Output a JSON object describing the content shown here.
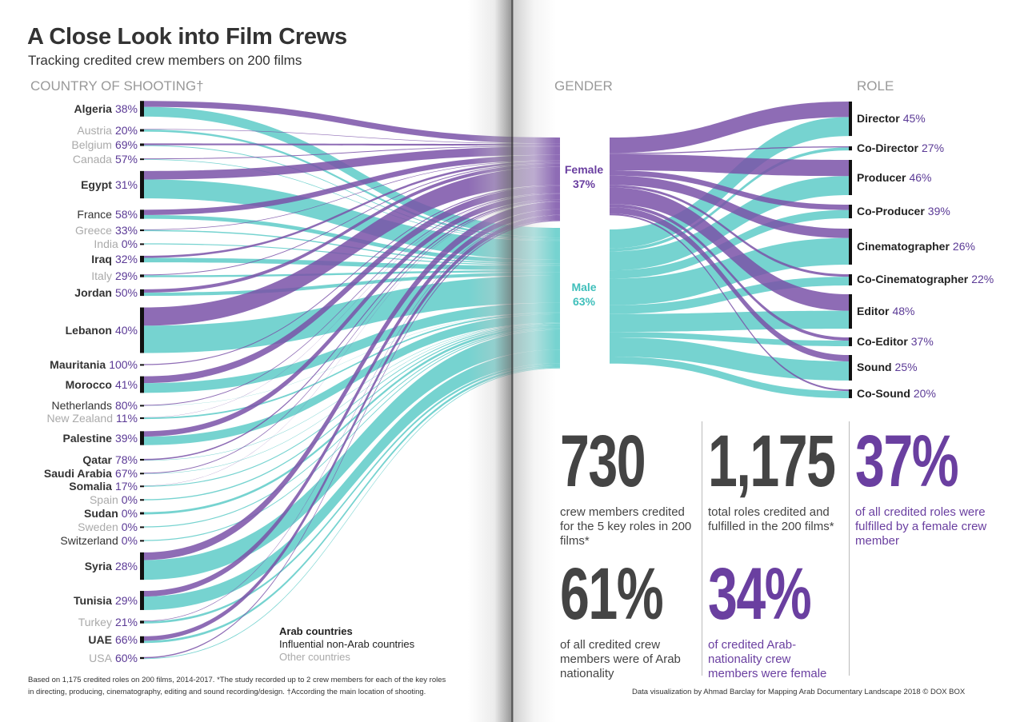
{
  "header": {
    "title": "A Close Look into Film Crews",
    "subtitle": "Tracking credited crew members on 200 films"
  },
  "columns": {
    "country": "COUNTRY OF SHOOTING†",
    "gender": "GENDER",
    "role": "ROLE"
  },
  "colors": {
    "female": "#7a52a8",
    "male": "#5ecbc8",
    "pct_text": "#5b3a96"
  },
  "chart_data": {
    "type": "sankey",
    "stages": [
      "Country of shooting",
      "Gender",
      "Role"
    ],
    "gender": [
      {
        "name": "Female",
        "pct": "37%"
      },
      {
        "name": "Male",
        "pct": "63%"
      }
    ],
    "countries": [
      {
        "name": "Algeria",
        "pct": "38%",
        "female_pct": 38,
        "group": "arab",
        "roles_est": 81
      },
      {
        "name": "Austria",
        "pct": "20%",
        "female_pct": 20,
        "group": "other",
        "roles_est": 13
      },
      {
        "name": "Belgium",
        "pct": "69%",
        "female_pct": 69,
        "group": "other",
        "roles_est": 13
      },
      {
        "name": "Canada",
        "pct": "57%",
        "female_pct": 57,
        "group": "other",
        "roles_est": 7
      },
      {
        "name": "Egypt",
        "pct": "31%",
        "female_pct": 31,
        "group": "arab",
        "roles_est": 142
      },
      {
        "name": "France",
        "pct": "58%",
        "female_pct": 58,
        "group": "influential",
        "roles_est": 47
      },
      {
        "name": "Greece",
        "pct": "33%",
        "female_pct": 33,
        "group": "other",
        "roles_est": 9
      },
      {
        "name": "India",
        "pct": "0%",
        "female_pct": 0,
        "group": "other",
        "roles_est": 3
      },
      {
        "name": "Iraq",
        "pct": "32%",
        "female_pct": 32,
        "group": "arab",
        "roles_est": 34
      },
      {
        "name": "Italy",
        "pct": "29%",
        "female_pct": 29,
        "group": "other",
        "roles_est": 14
      },
      {
        "name": "Jordan",
        "pct": "50%",
        "female_pct": 50,
        "group": "arab",
        "roles_est": 34
      },
      {
        "name": "Lebanon",
        "pct": "40%",
        "female_pct": 40,
        "group": "arab",
        "roles_est": 236
      },
      {
        "name": "Mauritania",
        "pct": "100%",
        "female_pct": 100,
        "group": "arab",
        "roles_est": 2
      },
      {
        "name": "Morocco",
        "pct": "41%",
        "female_pct": 41,
        "group": "arab",
        "roles_est": 86
      },
      {
        "name": "Netherlands",
        "pct": "80%",
        "female_pct": 80,
        "group": "influential",
        "roles_est": 5
      },
      {
        "name": "New Zealand",
        "pct": "11%",
        "female_pct": 11,
        "group": "other",
        "roles_est": 9
      },
      {
        "name": "Palestine",
        "pct": "39%",
        "female_pct": 39,
        "group": "arab",
        "roles_est": 72
      },
      {
        "name": "Qatar",
        "pct": "78%",
        "female_pct": 78,
        "group": "arab",
        "roles_est": 9
      },
      {
        "name": "Saudi Arabia",
        "pct": "67%",
        "female_pct": 67,
        "group": "arab",
        "roles_est": 6
      },
      {
        "name": "Somalia",
        "pct": "17%",
        "female_pct": 17,
        "group": "arab",
        "roles_est": 6
      },
      {
        "name": "Spain",
        "pct": "0%",
        "female_pct": 0,
        "group": "other",
        "roles_est": 6
      },
      {
        "name": "Sudan",
        "pct": "0%",
        "female_pct": 0,
        "group": "arab",
        "roles_est": 12
      },
      {
        "name": "Sweden",
        "pct": "0%",
        "female_pct": 0,
        "group": "other",
        "roles_est": 3
      },
      {
        "name": "Switzerland",
        "pct": "0%",
        "female_pct": 0,
        "group": "influential",
        "roles_est": 3
      },
      {
        "name": "Syria",
        "pct": "28%",
        "female_pct": 28,
        "group": "arab",
        "roles_est": 142
      },
      {
        "name": "Tunisia",
        "pct": "29%",
        "female_pct": 29,
        "group": "arab",
        "roles_est": 99
      },
      {
        "name": "Turkey",
        "pct": "21%",
        "female_pct": 21,
        "group": "other",
        "roles_est": 14
      },
      {
        "name": "UAE",
        "pct": "66%",
        "female_pct": 66,
        "group": "arab",
        "roles_est": 35
      },
      {
        "name": "USA",
        "pct": "60%",
        "female_pct": 60,
        "group": "other",
        "roles_est": 10
      }
    ],
    "roles": [
      {
        "name": "Director",
        "pct": "45%",
        "female_pct": 45,
        "roles_est": 185
      },
      {
        "name": "Co-Director",
        "pct": "27%",
        "female_pct": 27,
        "roles_est": 22
      },
      {
        "name": "Producer",
        "pct": "46%",
        "female_pct": 46,
        "roles_est": 189
      },
      {
        "name": "Co-Producer",
        "pct": "39%",
        "female_pct": 39,
        "roles_est": 73
      },
      {
        "name": "Cinematographer",
        "pct": "26%",
        "female_pct": 26,
        "roles_est": 193
      },
      {
        "name": "Co-Cinematographer",
        "pct": "22%",
        "female_pct": 22,
        "roles_est": 60
      },
      {
        "name": "Editor",
        "pct": "48%",
        "female_pct": 48,
        "roles_est": 185
      },
      {
        "name": "Co-Editor",
        "pct": "37%",
        "female_pct": 37,
        "roles_est": 47
      },
      {
        "name": "Sound",
        "pct": "25%",
        "female_pct": 25,
        "roles_est": 137
      },
      {
        "name": "Co-Sound",
        "pct": "20%",
        "female_pct": 20,
        "roles_est": 47
      }
    ]
  },
  "legend": {
    "arab": "Arab countries",
    "influential": "Influential non-Arab countries",
    "other": "Other countries"
  },
  "stats": [
    {
      "value": "730",
      "text": "crew members credited for the 5 key roles in 200 films*"
    },
    {
      "value": "1,175",
      "text": "total roles credited and fulfilled in the 200 films*"
    },
    {
      "value": "37%",
      "text": "of all credited roles were fulfilled by a female crew member"
    },
    {
      "value": "61%",
      "text": "of all credited crew members were of Arab nationality"
    },
    {
      "value": "34%",
      "text": "of credited Arab-nationality crew members were female"
    }
  ],
  "footnote": {
    "line1": "Based on 1,175 credited roles on 200 films, 2014-2017. *The study recorded up to 2 crew members for each of the key roles",
    "line2": "in directing, producing, cinematography, editing and sound recording/design. †According the main location of shooting."
  },
  "credit": "Data visualization by Ahmad Barclay for Mapping Arab Documentary Landscape 2018 © DOX BOX"
}
